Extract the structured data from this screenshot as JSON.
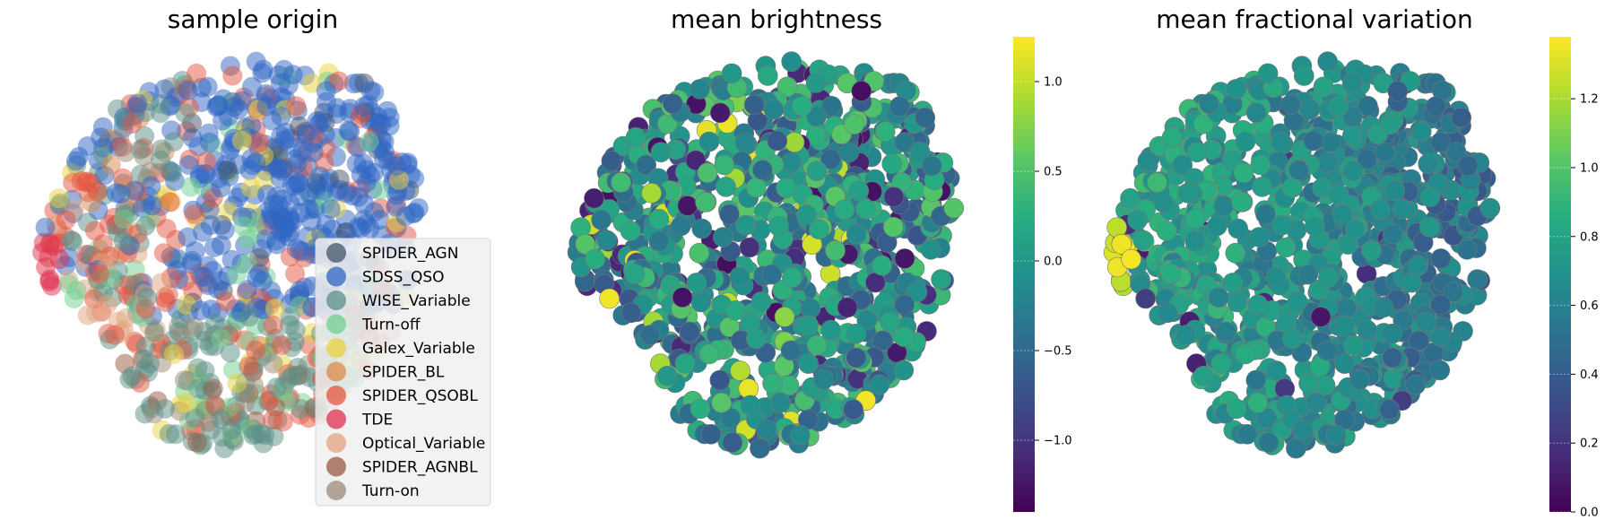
{
  "figure": {
    "panels": [
      {
        "title": "sample origin"
      },
      {
        "title": "mean brightness"
      },
      {
        "title": "mean fractional variation"
      }
    ]
  },
  "chart_data": [
    {
      "type": "scatter",
      "title": "sample origin",
      "xlabel": "",
      "ylabel": "",
      "axes_visible": false,
      "grid": false,
      "point_alpha": 0.45,
      "legend": {
        "placement": "lower-right",
        "entries": [
          {
            "name": "SPIDER_AGN",
            "color": "#44546a"
          },
          {
            "name": "SDSS_QSO",
            "color": "#2f66c4"
          },
          {
            "name": "WISE_Variable",
            "color": "#5a8f86"
          },
          {
            "name": "Turn-off",
            "color": "#6fcf8f"
          },
          {
            "name": "Galex_Variable",
            "color": "#e9d13c"
          },
          {
            "name": "SPIDER_BL",
            "color": "#d98a4a"
          },
          {
            "name": "SPIDER_QSOBL",
            "color": "#e4553f"
          },
          {
            "name": "TDE",
            "color": "#dd2f50"
          },
          {
            "name": "Optical_Variable",
            "color": "#e2a37e"
          },
          {
            "name": "SPIDER_AGNBL",
            "color": "#9a5a42"
          },
          {
            "name": "Turn-on",
            "color": "#9b8b7a"
          }
        ]
      },
      "regions": [
        {
          "label": "SDSS_QSO",
          "share": 0.5,
          "location": "upper-right"
        },
        {
          "label": "WISE_Variable",
          "share": 0.3,
          "location": "lower"
        },
        {
          "label": "SPIDER_QSOBL",
          "share": 0.1,
          "location": "left"
        },
        {
          "label": "TDE",
          "share": 0.02,
          "location": "far-left"
        }
      ]
    },
    {
      "type": "scatter",
      "title": "mean brightness",
      "xlabel": "",
      "ylabel": "",
      "axes_visible": false,
      "colormap": "viridis",
      "color_range": [
        -1.4,
        1.25
      ],
      "colorbar": {
        "ticks": [
          -1.0,
          -0.5,
          0.0,
          0.5,
          1.0
        ],
        "tick_labels": [
          "−1.0",
          "−0.5",
          "0.0",
          "0.5",
          "1.0"
        ]
      },
      "typical_value": -0.1
    },
    {
      "type": "scatter",
      "title": "mean fractional variation",
      "xlabel": "",
      "ylabel": "",
      "axes_visible": false,
      "colormap": "viridis",
      "color_range": [
        0.0,
        1.38
      ],
      "colorbar": {
        "ticks": [
          0.0,
          0.2,
          0.4,
          0.6,
          0.8,
          1.0,
          1.2
        ],
        "tick_labels": [
          "0.0",
          "0.2",
          "0.4",
          "0.6",
          "0.8",
          "1.0",
          "1.2"
        ]
      },
      "typical_value": 0.6,
      "gradient": "higher values toward the left"
    }
  ]
}
